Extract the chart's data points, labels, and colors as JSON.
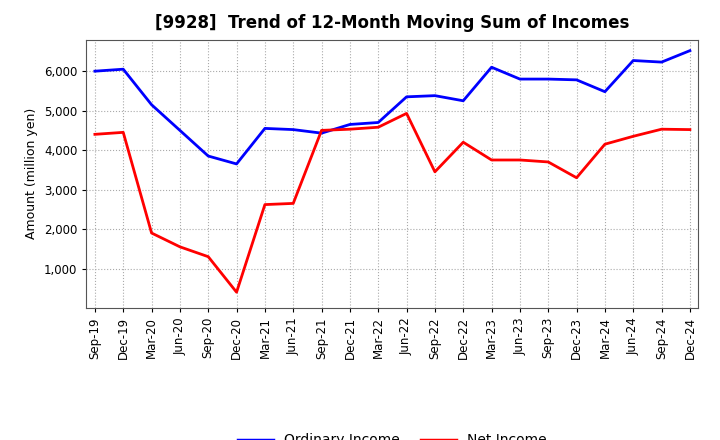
{
  "title": "[9928]  Trend of 12-Month Moving Sum of Incomes",
  "ylabel": "Amount (million yen)",
  "ylim": [
    0,
    6800
  ],
  "yticks": [
    1000,
    2000,
    3000,
    4000,
    5000,
    6000
  ],
  "x_labels": [
    "Sep-19",
    "Dec-19",
    "Mar-20",
    "Jun-20",
    "Sep-20",
    "Dec-20",
    "Mar-21",
    "Jun-21",
    "Sep-21",
    "Dec-21",
    "Mar-22",
    "Jun-22",
    "Sep-22",
    "Dec-22",
    "Mar-23",
    "Jun-23",
    "Sep-23",
    "Dec-23",
    "Mar-24",
    "Jun-24",
    "Sep-24",
    "Dec-24"
  ],
  "ordinary_income": [
    6000,
    6050,
    5150,
    4500,
    3850,
    3650,
    4550,
    4520,
    4430,
    4650,
    4700,
    5350,
    5380,
    5250,
    6100,
    5800,
    5800,
    5780,
    5480,
    6270,
    6230,
    6520
  ],
  "net_income": [
    4400,
    4450,
    1900,
    1550,
    1300,
    400,
    2620,
    2650,
    4500,
    4530,
    4580,
    4930,
    3450,
    4200,
    3750,
    3750,
    3700,
    3300,
    4150,
    4350,
    4530,
    4520
  ],
  "ordinary_color": "#0000FF",
  "net_color": "#FF0000",
  "background_color": "#FFFFFF",
  "grid_color": "#AAAAAA",
  "legend_labels": [
    "Ordinary Income",
    "Net Income"
  ],
  "title_fontsize": 12,
  "axis_fontsize": 9,
  "tick_fontsize": 8.5
}
